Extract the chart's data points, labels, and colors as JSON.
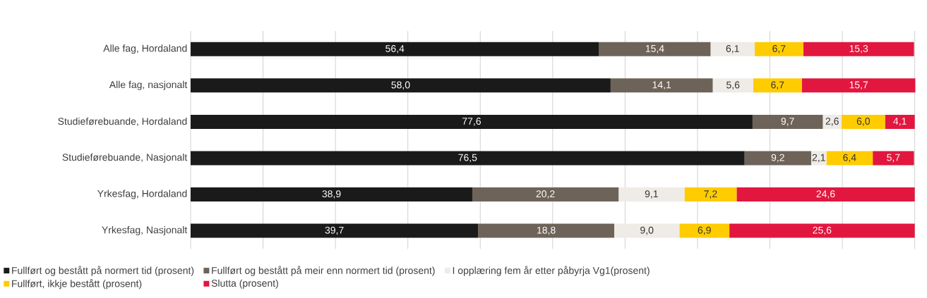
{
  "chart_data": {
    "type": "bar",
    "orientation": "horizontal",
    "stacked": true,
    "categories": [
      "Alle fag, Hordaland",
      "Alle fag, nasjonalt",
      "Studieførebuande, Hordaland",
      "Studieførebuande, Nasjonalt",
      "Yrkesfag, Hordaland",
      "Yrkesfag, Nasjonalt"
    ],
    "series": [
      {
        "name": "Fullført og bestått på normert tid (prosent)",
        "color": "#1a1a1a",
        "values": [
          56.4,
          58.0,
          77.6,
          76.5,
          38.9,
          39.7
        ],
        "value_labels": [
          "56,4",
          "58,0",
          "77,6",
          "76,5",
          "38,9",
          "39,7"
        ]
      },
      {
        "name": "Fullført og bestått på meir enn normert tid (prosent)",
        "color": "#6e6358",
        "values": [
          15.4,
          14.1,
          9.7,
          9.2,
          20.2,
          18.8
        ],
        "value_labels": [
          "15,4",
          "14,1",
          "9,7",
          "9,2",
          "20,2",
          "18,8"
        ]
      },
      {
        "name": "I opplæring fem år etter påbyrja Vg1(prosent)",
        "color": "#efebe6",
        "values": [
          6.1,
          5.6,
          2.6,
          2.1,
          9.1,
          9.0
        ],
        "value_labels": [
          "6,1",
          "5,6",
          "2,6",
          "2,1",
          "9,1",
          "9,0"
        ]
      },
      {
        "name": "Fullført, ikkje bestått (prosent)",
        "color": "#ffcc00",
        "values": [
          6.7,
          6.7,
          6.0,
          6.4,
          7.2,
          6.9
        ],
        "value_labels": [
          "6,7",
          "6,7",
          "6,0",
          "6,4",
          "7,2",
          "6,9"
        ]
      },
      {
        "name": "Slutta (prosent)",
        "color": "#e2173f",
        "values": [
          15.3,
          15.7,
          4.1,
          5.7,
          24.6,
          25.6
        ],
        "value_labels": [
          "15,3",
          "15,7",
          "4,1",
          "5,7",
          "24,6",
          "25,6"
        ]
      }
    ],
    "grid": "x",
    "tick_labels": "y",
    "legend": "bottom"
  }
}
